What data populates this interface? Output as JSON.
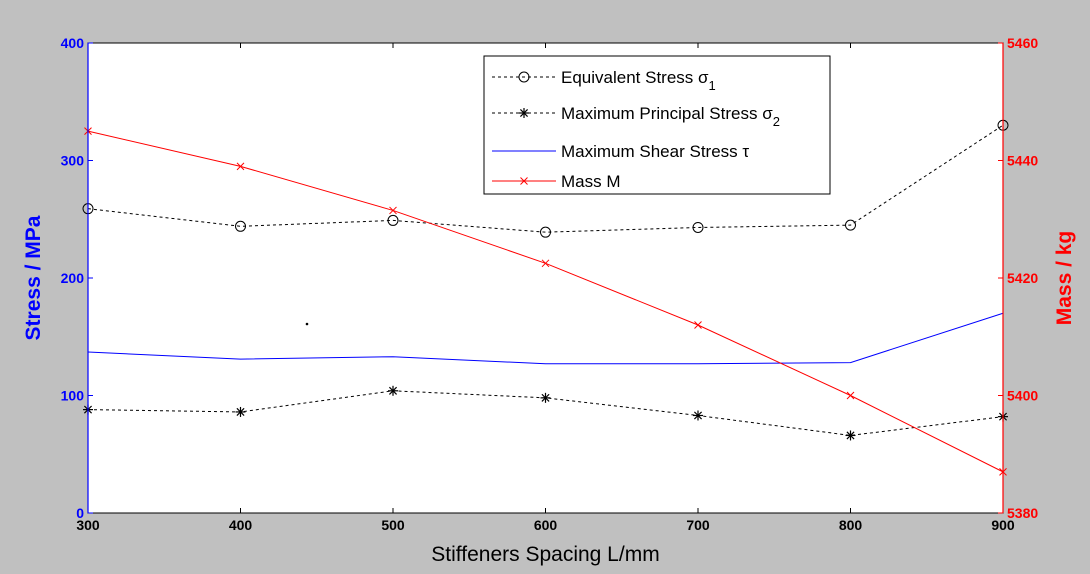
{
  "chart_data": {
    "type": "line",
    "xlabel": "Stiffeners Spacing  L/mm",
    "ylabel": "Stress / MPa",
    "y2label": "Mass / kg",
    "xlim": [
      300,
      900
    ],
    "ylim": [
      0,
      400
    ],
    "y2lim": [
      5380,
      5460
    ],
    "x_ticks": [
      "300",
      "400",
      "500",
      "600",
      "700",
      "800",
      "900"
    ],
    "y_ticks": [
      "0",
      "100",
      "200",
      "300",
      "400"
    ],
    "y2_ticks": [
      "5380",
      "5400",
      "5420",
      "5440",
      "5460"
    ],
    "x": [
      300,
      400,
      500,
      600,
      700,
      800,
      900
    ],
    "legend_position": "top-center",
    "colors": {
      "left_axis": "#0000ff",
      "right_axis": "#ff0000",
      "stress": "#000000",
      "shear": "#0000ff",
      "mass": "#ff0000"
    },
    "series": [
      {
        "name": "Equivalent Stress σ",
        "sub": "1",
        "axis": "left",
        "marker": "circle",
        "style": "dashed",
        "values": [
          259,
          244,
          249,
          239,
          243,
          245,
          330
        ]
      },
      {
        "name": "Maximum Principal Stress σ",
        "sub": "2",
        "axis": "left",
        "marker": "star",
        "style": "dashed",
        "values": [
          88,
          86,
          104,
          98,
          83,
          66,
          82
        ]
      },
      {
        "name": "Maximum Shear Stress τ",
        "sub": "",
        "axis": "left",
        "marker": "none",
        "style": "solid",
        "values": [
          137,
          131,
          133,
          127,
          127,
          128,
          170
        ]
      },
      {
        "name": "Mass M",
        "sub": "",
        "axis": "right",
        "marker": "x",
        "style": "solid",
        "values": [
          5445,
          5439,
          5431.5,
          5422.5,
          5412,
          5400,
          5387
        ]
      }
    ]
  }
}
